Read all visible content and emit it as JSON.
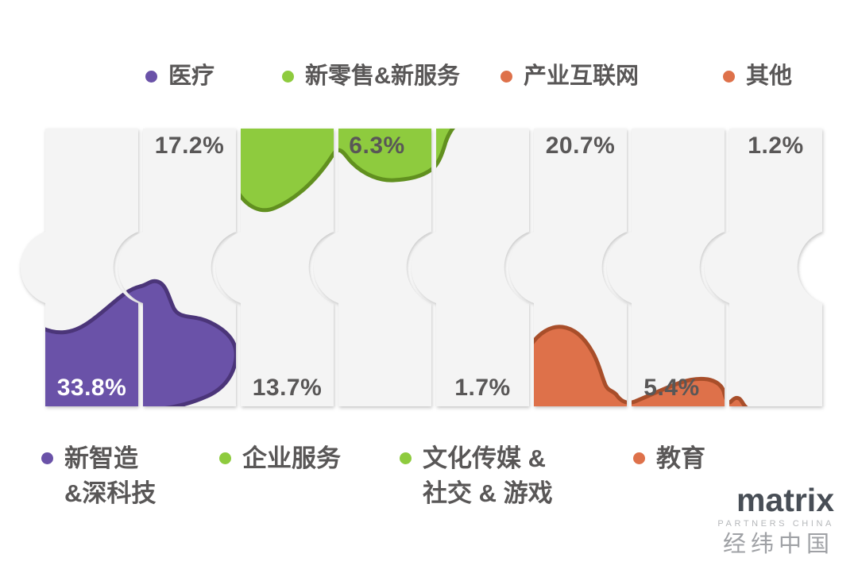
{
  "background": "#ffffff",
  "chart_data": {
    "type": "bar",
    "subtype": "puzzle-share-infographic",
    "unit": "%",
    "categories": [
      "新智造&深科技",
      "医疗",
      "企业服务",
      "新零售&新服务",
      "文化传媒＆社交＆游戏",
      "产业互联网",
      "教育",
      "其他"
    ],
    "values": [
      33.8,
      17.2,
      13.7,
      6.3,
      1.7,
      20.7,
      5.4,
      1.2
    ],
    "pieces": [
      {
        "label": "新智造&深科技",
        "value": 33.8,
        "value_label": "33.8%",
        "color": "#6a52a8",
        "value_label_position": "bottom",
        "value_label_color": "#ffffff"
      },
      {
        "label": "医疗",
        "value": 17.2,
        "value_label": "17.2%",
        "color": "#6a52a8",
        "value_label_position": "top",
        "value_label_color": "#595757"
      },
      {
        "label": "企业服务",
        "value": 13.7,
        "value_label": "13.7%",
        "color": "#8ecb3e",
        "value_label_position": "bottom",
        "value_label_color": "#595757"
      },
      {
        "label": "新零售&新服务",
        "value": 6.3,
        "value_label": "6.3%",
        "color": "#8ecb3e",
        "value_label_position": "top",
        "value_label_color": "#595757"
      },
      {
        "label": "文化传媒＆社交＆游戏",
        "value": 1.7,
        "value_label": "1.7%",
        "color": "#8ecb3e",
        "value_label_position": "bottom",
        "value_label_color": "#595757"
      },
      {
        "label": "产业互联网",
        "value": 20.7,
        "value_label": "20.7%",
        "color": "#de714a",
        "value_label_position": "top",
        "value_label_color": "#595757"
      },
      {
        "label": "教育",
        "value": 5.4,
        "value_label": "5.4%",
        "color": "#de714a",
        "value_label_position": "bottom",
        "value_label_color": "#595757"
      },
      {
        "label": "其他",
        "value": 1.2,
        "value_label": "1.2%",
        "color": "#de714a",
        "value_label_position": "top",
        "value_label_color": "#595757"
      }
    ],
    "legend_position": "top-and-bottom",
    "grid": false
  },
  "legend_top": {
    "items": [
      {
        "label": "医疗",
        "color": "#6a52a8"
      },
      {
        "label": "新零售&新服务",
        "color": "#8ecb3e"
      },
      {
        "label": "产业互联网",
        "color": "#de714a"
      },
      {
        "label": "其他",
        "color": "#de714a"
      }
    ]
  },
  "legend_bottom": {
    "items": [
      {
        "lines": [
          "新智造",
          "&深科技"
        ],
        "color": "#6a52a8"
      },
      {
        "lines": [
          "企业服务"
        ],
        "color": "#8ecb3e"
      },
      {
        "lines": [
          "文化传媒 &",
          "社交 & 游戏"
        ],
        "color": "#8ecb3e"
      },
      {
        "lines": [
          "教育"
        ],
        "color": "#de714a"
      }
    ]
  },
  "logo": {
    "brand": "matrix",
    "subtitle": "PARTNERS CHINA",
    "chinese_name": "经纬中国"
  },
  "colors": {
    "purple": "#6a52a8",
    "purple_dark": "#4b3579",
    "green": "#8ecb3e",
    "green_dark": "#61901f",
    "orange": "#de714a",
    "orange_dark": "#a84e2a",
    "label_gray": "#595757",
    "piece_fill": "#f4f4f4"
  }
}
